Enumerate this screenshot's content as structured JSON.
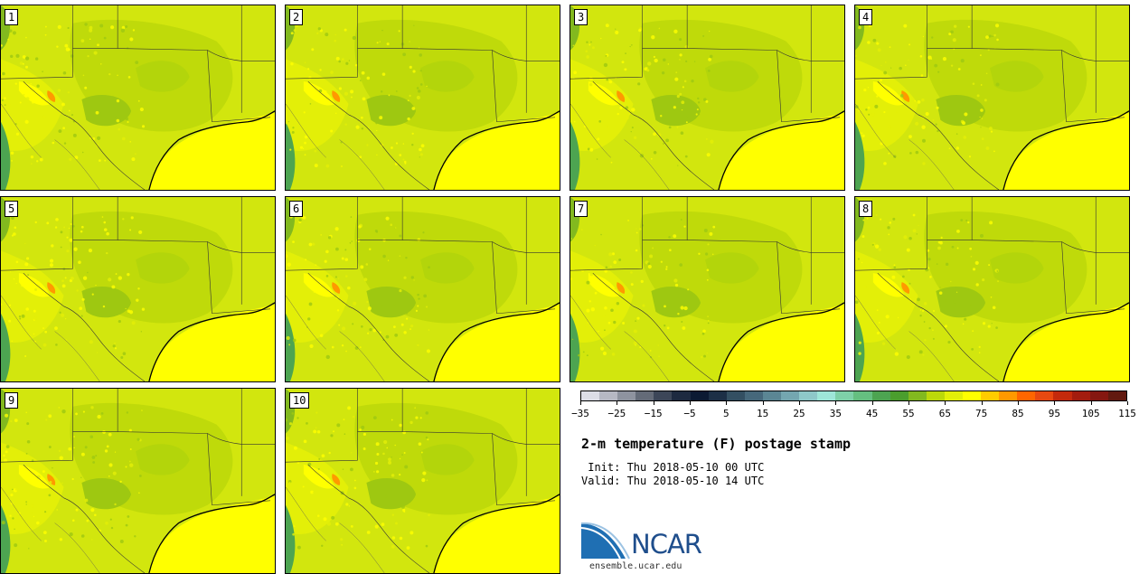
{
  "panels": [
    "1",
    "2",
    "3",
    "4",
    "5",
    "6",
    "7",
    "8",
    "9",
    "10"
  ],
  "colorbar": {
    "colors": [
      "#dcdde6",
      "#b6b8c3",
      "#8e939f",
      "#646b78",
      "#3c4658",
      "#1d2a40",
      "#0c1a33",
      "#1c2f46",
      "#334f62",
      "#46687b",
      "#5b8694",
      "#74a6b0",
      "#8ec8c9",
      "#9ee6d8",
      "#7ed0a8",
      "#65bf80",
      "#4da451",
      "#4b9e2e",
      "#82b91f",
      "#bcd80a",
      "#e3ef08",
      "#ffff00",
      "#ffcc00",
      "#ff9900",
      "#ff6600",
      "#e84910",
      "#c42a0c",
      "#a31c0e",
      "#851710",
      "#62190f"
    ],
    "min": -35,
    "max": 115,
    "tick_labels": [
      "−35",
      "−25",
      "−15",
      "−5",
      "5",
      "15",
      "25",
      "35",
      "45",
      "55",
      "65",
      "75",
      "85",
      "95",
      "105",
      "115"
    ]
  },
  "title": "2-m temperature (F) postage stamp",
  "init_line": " Init: Thu 2018-05-10 00 UTC",
  "valid_line": "Valid: Thu 2018-05-10 14 UTC",
  "logo_text": "NCAR",
  "logo_url": "ensemble.ucar.edu"
}
